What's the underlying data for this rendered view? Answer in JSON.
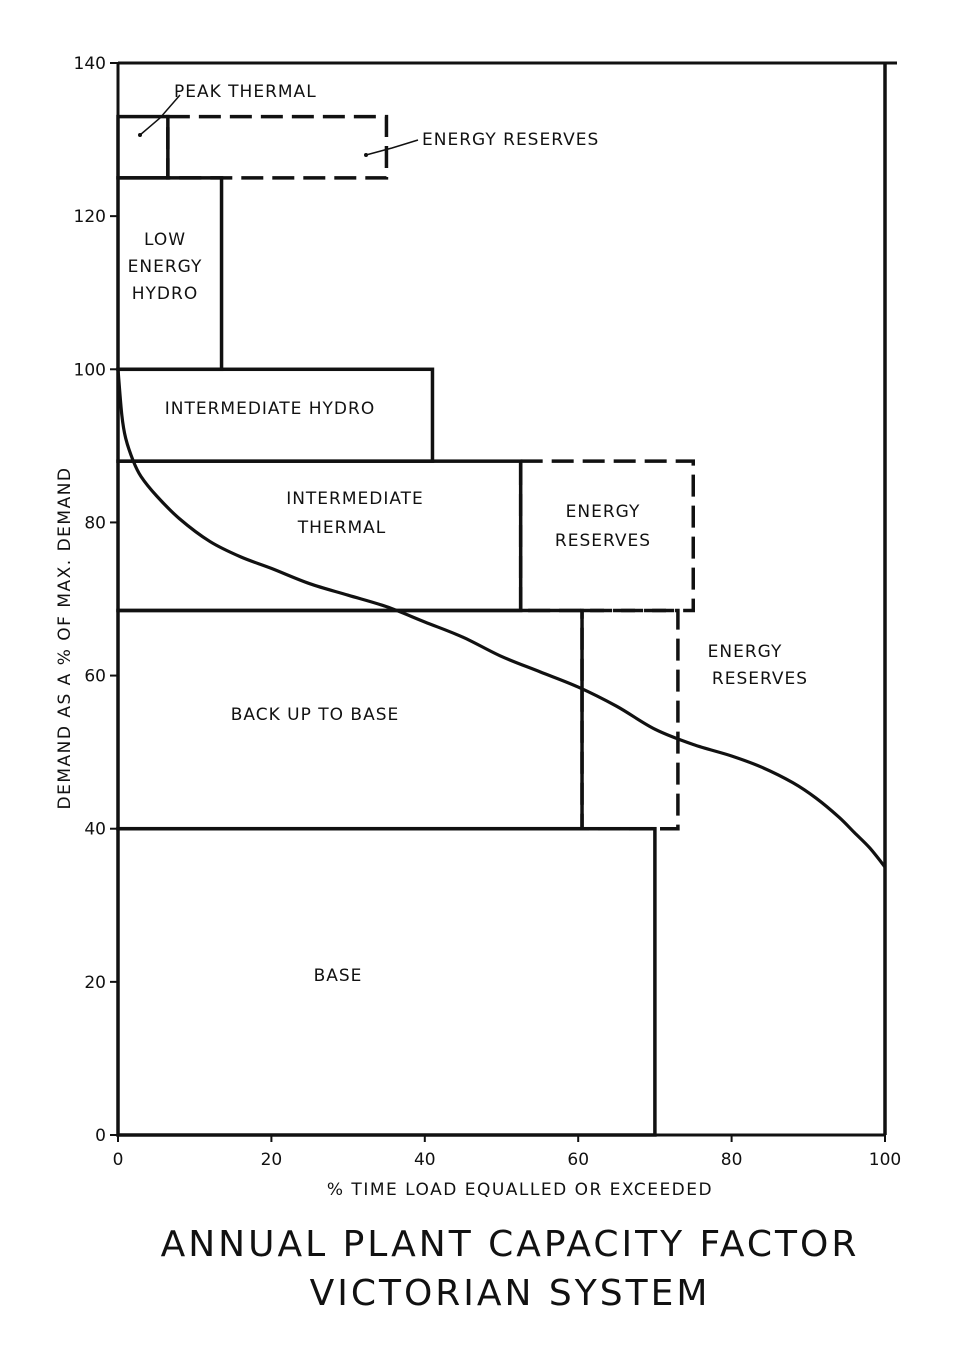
{
  "chart_data": {
    "type": "area",
    "title": "ANNUAL PLANT CAPACITY FACTOR",
    "subtitle": "VICTORIAN SYSTEM",
    "xlabel": "% TIME LOAD EQUALLED OR EXCEEDED",
    "ylabel": "DEMAND AS A % OF MAX. DEMAND",
    "xlim": [
      0,
      100
    ],
    "ylim": [
      0,
      140
    ],
    "grid": false,
    "x_ticks": [
      "0",
      "20",
      "40",
      "60",
      "80",
      "100"
    ],
    "y_ticks": [
      "0",
      "20",
      "40",
      "60",
      "80",
      "100",
      "120",
      "140"
    ],
    "series": [
      {
        "x": [
          0,
          0.5,
          1,
          2,
          3,
          5,
          8,
          12,
          16,
          20,
          25,
          30,
          35,
          40,
          45,
          50,
          55,
          60,
          65,
          70,
          75,
          80,
          84,
          88,
          91,
          94,
          96,
          98,
          100
        ],
        "y": [
          100,
          94,
          91,
          88,
          86,
          83.5,
          80.5,
          77.5,
          75.5,
          74,
          72,
          70.5,
          69,
          67,
          65,
          62.5,
          60.5,
          58.5,
          56,
          53,
          51,
          49.5,
          48,
          46,
          44,
          41.5,
          39.5,
          37.5,
          35
        ]
      }
    ],
    "blocks": [
      {
        "label": "BASE",
        "x": [
          0,
          70
        ],
        "y": [
          0,
          40
        ],
        "style": "solid"
      },
      {
        "label": "BACK UP TO BASE",
        "x": [
          0,
          60.5
        ],
        "y": [
          40,
          68.5
        ],
        "style": "solid"
      },
      {
        "label": "ENERGY RESERVES",
        "x": [
          60.5,
          73
        ],
        "y": [
          40,
          68.5
        ],
        "style": "dashed"
      },
      {
        "label": "INTERMEDIATE THERMAL",
        "x": [
          0,
          52.5
        ],
        "y": [
          68.5,
          88
        ],
        "style": "solid"
      },
      {
        "label": "ENERGY RESERVES",
        "x": [
          52.5,
          75
        ],
        "y": [
          68.5,
          88
        ],
        "style": "dashed"
      },
      {
        "label": "INTERMEDIATE HYDRO",
        "x": [
          0,
          41
        ],
        "y": [
          88,
          100
        ],
        "style": "solid"
      },
      {
        "label": "LOW ENERGY HYDRO",
        "x": [
          0,
          13.5
        ],
        "y": [
          100,
          125
        ],
        "style": "solid"
      },
      {
        "label": "PEAK THERMAL",
        "x": [
          0,
          6.5
        ],
        "y": [
          125,
          133
        ],
        "style": "solid"
      },
      {
        "label": "ENERGY RESERVES",
        "x": [
          6.5,
          35
        ],
        "y": [
          125,
          133
        ],
        "style": "dashed"
      }
    ],
    "labels": {
      "peak_thermal": "PEAK THERMAL",
      "energy_reserves_top": "ENERGY RESERVES",
      "low_energy_hydro": [
        "LOW",
        "ENERGY",
        "HYDRO"
      ],
      "intermediate_hydro": "INTERMEDIATE HYDRO",
      "intermediate_thermal": [
        "INTERMEDIATE",
        "THERMAL"
      ],
      "energy_reserves_mid": [
        "ENERGY",
        "RESERVES"
      ],
      "energy_reserves_right": [
        "ENERGY",
        "RESERVES"
      ],
      "back_up_to_base": "BACK UP TO BASE",
      "base": "BASE"
    }
  }
}
